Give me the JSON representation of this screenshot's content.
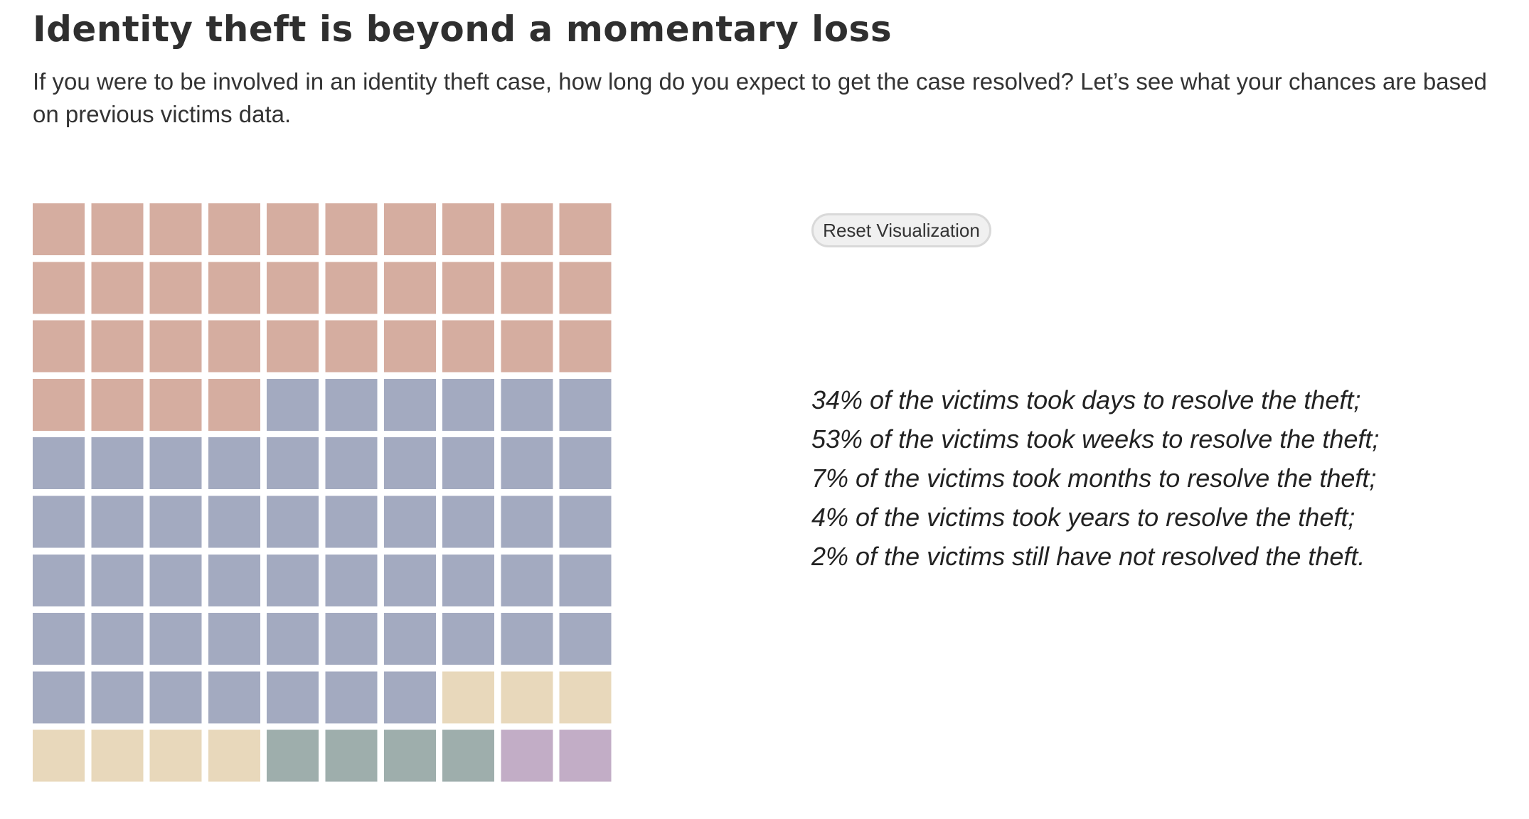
{
  "header": {
    "title": "Identity theft is beyond a momentary loss",
    "subtitle": "If you were to be involved in an identity theft case, how long do you expect to get the case resolved? Let’s see what your chances are based on previous victims data."
  },
  "controls": {
    "reset_label": "Reset Visualization"
  },
  "stats": [
    "34% of the victims took days to resolve the theft;",
    "53% of the victims took weeks to resolve the theft;",
    "7% of the victims took months to resolve the theft;",
    "4% of the victims took years to resolve the theft;",
    "2% of the victims still have not resolved the theft."
  ],
  "chart_data": {
    "type": "waffle",
    "grid": {
      "rows": 10,
      "cols": 10
    },
    "categories": [
      "days",
      "weeks",
      "months",
      "years",
      "not resolved"
    ],
    "values": [
      34,
      53,
      7,
      4,
      2
    ],
    "colors": [
      "#d5ada0",
      "#a3aac0",
      "#e8d8bb",
      "#9eaeac",
      "#c2adc6"
    ],
    "fill_order": "row-major from top-left"
  }
}
